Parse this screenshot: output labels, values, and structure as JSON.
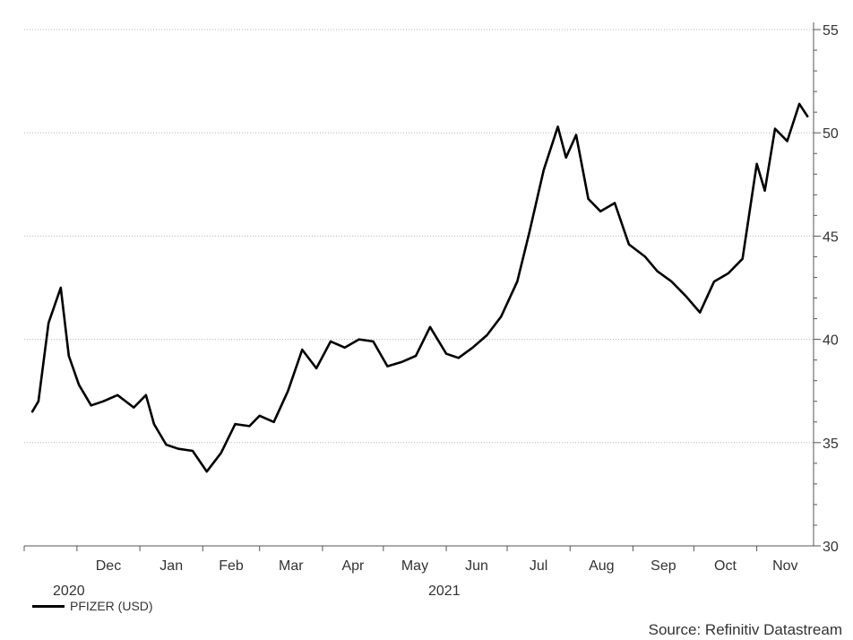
{
  "chart_data": {
    "type": "line",
    "title": "",
    "xlabel": "",
    "ylabel": "",
    "ylim": [
      30,
      55
    ],
    "y_ticks": [
      30,
      35,
      40,
      45,
      50,
      55
    ],
    "x_tick_labels": [
      "Dec",
      "Jan",
      "Feb",
      "Mar",
      "Apr",
      "May",
      "Jun",
      "Jul",
      "Aug",
      "Sep",
      "Oct",
      "Nov"
    ],
    "year_labels": [
      "2020",
      "2021"
    ],
    "grid": "horizontal dotted",
    "y_axis_position": "right",
    "legend_position": "bottom-left",
    "series": [
      {
        "name": "PFIZER (USD)",
        "color": "#000000",
        "x": [
          "2020-11-09",
          "2020-11-12",
          "2020-11-17",
          "2020-11-23",
          "2020-11-27",
          "2020-12-02",
          "2020-12-08",
          "2020-12-14",
          "2020-12-21",
          "2020-12-29",
          "2021-01-04",
          "2021-01-08",
          "2021-01-14",
          "2021-01-20",
          "2021-01-27",
          "2021-02-03",
          "2021-02-10",
          "2021-02-17",
          "2021-02-24",
          "2021-03-01",
          "2021-03-08",
          "2021-03-15",
          "2021-03-22",
          "2021-03-29",
          "2021-04-05",
          "2021-04-12",
          "2021-04-19",
          "2021-04-26",
          "2021-05-03",
          "2021-05-10",
          "2021-05-17",
          "2021-05-24",
          "2021-06-01",
          "2021-06-07",
          "2021-06-14",
          "2021-06-21",
          "2021-06-28",
          "2021-07-06",
          "2021-07-12",
          "2021-07-19",
          "2021-07-26",
          "2021-07-30",
          "2021-08-04",
          "2021-08-10",
          "2021-08-16",
          "2021-08-23",
          "2021-08-30",
          "2021-09-07",
          "2021-09-13",
          "2021-09-20",
          "2021-09-27",
          "2021-10-04",
          "2021-10-11",
          "2021-10-18",
          "2021-10-25",
          "2021-11-01",
          "2021-11-05",
          "2021-11-10",
          "2021-11-16",
          "2021-11-22",
          "2021-11-26"
        ],
        "y": [
          36.5,
          37.0,
          40.8,
          42.5,
          39.2,
          37.8,
          36.8,
          37.0,
          37.3,
          36.7,
          37.3,
          35.9,
          34.9,
          34.7,
          34.6,
          33.6,
          34.5,
          35.9,
          35.8,
          36.3,
          36.0,
          37.5,
          39.5,
          38.6,
          39.9,
          39.6,
          40.0,
          39.9,
          38.7,
          38.9,
          39.2,
          40.6,
          39.3,
          39.1,
          39.6,
          40.2,
          41.1,
          42.8,
          45.2,
          48.2,
          50.3,
          48.8,
          49.9,
          46.8,
          46.2,
          46.6,
          44.6,
          44.0,
          43.3,
          42.8,
          42.1,
          41.3,
          42.8,
          43.2,
          43.9,
          48.5,
          47.2,
          50.2,
          49.6,
          51.4,
          50.8
        ]
      }
    ]
  },
  "legend": {
    "label": "PFIZER (USD)"
  },
  "source": {
    "text": "Source: Refinitiv Datastream"
  }
}
